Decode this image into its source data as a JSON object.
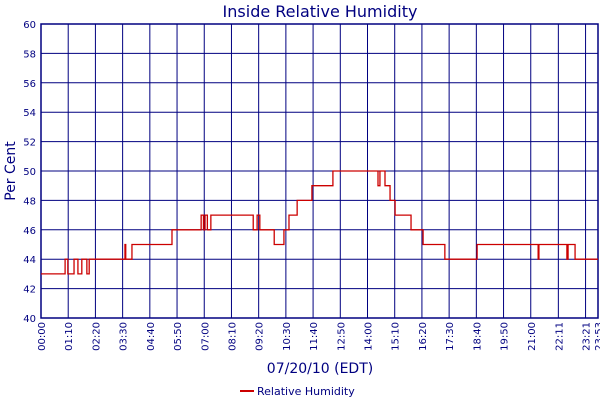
{
  "chart_data": {
    "type": "line",
    "title": "Inside Relative Humidity",
    "xlabel": "07/20/10 (EDT)",
    "ylabel": "Per Cent",
    "ylim": [
      40,
      60
    ],
    "xlim": [
      "00:00",
      "23:53"
    ],
    "grid": true,
    "legend_placement": "bottom",
    "yticks": [
      40,
      42,
      44,
      46,
      48,
      50,
      52,
      54,
      56,
      58,
      60
    ],
    "xticks": [
      "00:00",
      "01:10",
      "02:20",
      "03:30",
      "04:40",
      "05:50",
      "07:00",
      "08:10",
      "09:20",
      "10:30",
      "11:40",
      "12:50",
      "14:00",
      "15:10",
      "16:20",
      "17:30",
      "18:40",
      "19:50",
      "21:00",
      "22:11",
      "23:21",
      "23:53"
    ],
    "colors": {
      "series": "#cc0000",
      "grid": "#000080",
      "text": "#000080"
    },
    "series": [
      {
        "name": "Relative Humidity",
        "step": true,
        "points": [
          [
            "00:00",
            43
          ],
          [
            "01:02",
            44
          ],
          [
            "01:09",
            43
          ],
          [
            "01:25",
            44
          ],
          [
            "01:35",
            43
          ],
          [
            "01:45",
            44
          ],
          [
            "01:58",
            43
          ],
          [
            "02:04",
            44
          ],
          [
            "03:36",
            45
          ],
          [
            "03:38",
            44
          ],
          [
            "03:54",
            45
          ],
          [
            "05:37",
            46
          ],
          [
            "06:52",
            47
          ],
          [
            "06:58",
            46
          ],
          [
            "07:02",
            47
          ],
          [
            "07:08",
            46
          ],
          [
            "07:17",
            47
          ],
          [
            "09:06",
            46
          ],
          [
            "09:16",
            47
          ],
          [
            "09:23",
            46
          ],
          [
            "10:00",
            45
          ],
          [
            "10:25",
            46
          ],
          [
            "10:38",
            47
          ],
          [
            "10:59",
            48
          ],
          [
            "11:37",
            49
          ],
          [
            "12:31",
            50
          ],
          [
            "14:27",
            49
          ],
          [
            "14:32",
            50
          ],
          [
            "14:45",
            49
          ],
          [
            "14:58",
            48
          ],
          [
            "15:11",
            47
          ],
          [
            "15:52",
            46
          ],
          [
            "16:23",
            45
          ],
          [
            "17:19",
            44
          ],
          [
            "18:42",
            45
          ],
          [
            "21:19",
            44
          ],
          [
            "21:21",
            45
          ],
          [
            "22:33",
            44
          ],
          [
            "22:36",
            45
          ],
          [
            "22:54",
            44
          ],
          [
            "23:53",
            44
          ]
        ]
      }
    ]
  }
}
